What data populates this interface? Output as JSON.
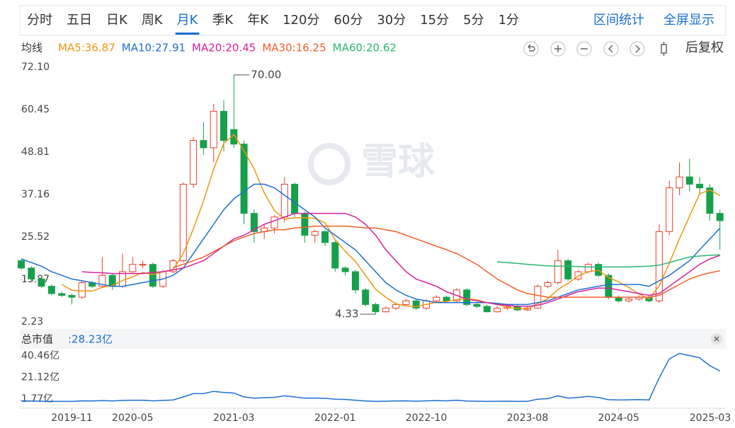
{
  "tabs": [
    "分时",
    "五日",
    "日K",
    "周K",
    "月K",
    "季K",
    "年K",
    "120分",
    "60分",
    "30分",
    "15分",
    "5分",
    "1分"
  ],
  "active_tab": "月K",
  "actions": [
    "区间统计",
    "全屏显示"
  ],
  "ma_label": "均线",
  "restore_label": "后复权",
  "watermark": "雪球",
  "cap_label": "总市值",
  "chart_data": [
    {
      "type": "candlestick",
      "up_color": "#e8412d",
      "down_color": "#16a04b",
      "ylim": [
        2.23,
        72.1
      ],
      "yticks": [
        {
          "value": 72.1,
          "label": "72.10"
        },
        60.45,
        48.81,
        37.16,
        25.52,
        13.87,
        2.23
      ],
      "annotations": [
        {
          "label": "70.00",
          "value": 70
        },
        {
          "label": "4.33",
          "value": 4.33
        }
      ],
      "open": [
        19,
        17,
        14,
        12,
        10,
        9.5,
        9,
        13,
        12,
        15,
        12,
        16,
        18,
        18,
        12,
        16,
        19,
        40,
        52,
        50,
        60,
        55,
        51,
        32,
        27,
        28,
        31,
        40,
        32,
        26,
        27,
        24,
        17,
        16,
        11,
        7,
        5,
        6,
        7,
        8,
        6,
        8,
        9,
        8,
        11,
        7,
        6.5,
        5,
        6,
        6.5,
        5.5,
        6,
        12,
        13,
        19,
        14,
        16,
        18,
        15,
        9,
        8,
        8.5,
        9,
        8,
        27,
        39,
        42,
        40,
        39,
        32
      ],
      "high": [
        19.5,
        17.5,
        14.5,
        12.5,
        10.5,
        10,
        13.5,
        13.5,
        20,
        15.5,
        21,
        20,
        19,
        18.5,
        16.5,
        19.5,
        40.5,
        53,
        57,
        62,
        63,
        70,
        52,
        33,
        29,
        31.5,
        42,
        40.5,
        32.5,
        27.5,
        27.5,
        24.5,
        17.5,
        16.5,
        11.5,
        7.5,
        6.5,
        7.5,
        8.5,
        8.5,
        8.5,
        9.5,
        9.5,
        11.5,
        11.5,
        7.5,
        7,
        6.5,
        6.8,
        7,
        6.5,
        12.5,
        13.5,
        22,
        19.5,
        16.5,
        18.5,
        18.5,
        15.5,
        9.5,
        9,
        9.5,
        9.5,
        29,
        41,
        46,
        47,
        42,
        40,
        33
      ],
      "low": [
        16.5,
        13.5,
        11.5,
        9.5,
        9,
        7,
        8.5,
        11.5,
        11.5,
        11,
        11.5,
        15.5,
        17,
        11.5,
        11.5,
        15.5,
        18.5,
        39,
        48,
        46,
        49,
        50,
        29,
        24,
        25,
        26.5,
        29.5,
        31,
        24,
        24,
        23,
        16,
        15,
        10,
        6.5,
        4.33,
        4.8,
        5.5,
        6.5,
        5.5,
        5.5,
        7.5,
        7.5,
        7.5,
        6.5,
        6,
        4.8,
        4.8,
        5.5,
        5.2,
        5.2,
        5.8,
        11.5,
        12.5,
        13.5,
        13.5,
        15.5,
        14.5,
        8.5,
        7.5,
        7.5,
        8,
        7.5,
        7.5,
        26,
        37,
        38,
        37,
        30,
        22
      ],
      "close": [
        17,
        14,
        12,
        10,
        9.5,
        9,
        13,
        12,
        15,
        12,
        16,
        18,
        18,
        12,
        16,
        19,
        40,
        52,
        50,
        60,
        52,
        51,
        32,
        27,
        28,
        31,
        40,
        32,
        26,
        27,
        24,
        17,
        16,
        11,
        7,
        5,
        6,
        7,
        8,
        6,
        8,
        9,
        8,
        11,
        7,
        6.5,
        5,
        6,
        6.5,
        5.5,
        6,
        12,
        13,
        19,
        14,
        16,
        18,
        15,
        9,
        8,
        8.5,
        9,
        8,
        27,
        39,
        42,
        40,
        39,
        32,
        30
      ],
      "series": [
        {
          "name": "MA5:36.87",
          "color": "#f0960f",
          "values": [
            null,
            null,
            null,
            null,
            12.5,
            10.9,
            10.7,
            10.7,
            11.7,
            12.2,
            13.6,
            14.6,
            15.8,
            15.2,
            16,
            16.6,
            21,
            27.8,
            35.4,
            44.2,
            51.2,
            53.6,
            49.2,
            44.2,
            37.6,
            32.8,
            30.4,
            30.8,
            30.8,
            30.6,
            29.4,
            24.8,
            21.6,
            18.8,
            15,
            11.2,
            9,
            7.2,
            6.6,
            6.4,
            7,
            7.6,
            7.8,
            8.4,
            8.6,
            8.3,
            7.5,
            7.1,
            6.2,
            5.9,
            5.8,
            7.2,
            8.6,
            11.1,
            12.8,
            14.8,
            16,
            16.4,
            14.4,
            13.2,
            11.7,
            9.9,
            8.5,
            12.1,
            18.3,
            25,
            31.2,
            37.4,
            38.4,
            36.87
          ]
        },
        {
          "name": "MA10:27.91",
          "color": "#1e6fd0",
          "values": [
            19.5,
            18.5,
            17.5,
            16,
            15,
            14,
            13.5,
            13,
            12.5,
            12,
            12,
            12.5,
            13,
            13.5,
            14,
            15,
            17,
            21,
            25,
            29,
            33,
            36,
            38,
            40,
            40,
            39,
            37,
            35,
            33,
            31,
            28,
            26,
            24,
            22,
            19,
            16,
            13,
            11,
            9.5,
            8.5,
            8,
            7.5,
            7.5,
            7.5,
            7.5,
            7.5,
            7.5,
            7.3,
            7,
            7,
            7,
            7.5,
            8,
            9,
            10,
            11,
            11.5,
            12,
            12.5,
            12.5,
            12.5,
            12.5,
            12,
            13.5,
            15,
            17,
            19,
            22,
            25,
            27.91
          ]
        },
        {
          "name": "MA20:20.45",
          "color": "#d6219c",
          "values": [
            null,
            null,
            null,
            null,
            null,
            null,
            16,
            15.8,
            15.7,
            15.5,
            15.5,
            15.5,
            15.5,
            15.8,
            16,
            16.5,
            17,
            18,
            19,
            21,
            23,
            25,
            26,
            27.5,
            29,
            30,
            31,
            32,
            32,
            32,
            32,
            32,
            32,
            31,
            29,
            26,
            22,
            19,
            16,
            14,
            13,
            12,
            10.5,
            9.5,
            8.5,
            8,
            7.5,
            7,
            6.8,
            6.5,
            6.5,
            6.8,
            7.5,
            8.5,
            9.5,
            10.5,
            11,
            11.5,
            11.5,
            11,
            10.5,
            10,
            9.5,
            10,
            12,
            14,
            16,
            18,
            19.5,
            20.45
          ]
        },
        {
          "name": "MA30:16.25",
          "color": "#f0602a",
          "values": [
            null,
            null,
            null,
            null,
            null,
            null,
            null,
            null,
            null,
            null,
            null,
            null,
            null,
            null,
            null,
            17.2,
            18,
            19,
            20,
            21.5,
            23,
            24.5,
            25.5,
            26.5,
            27,
            27.5,
            27.5,
            28,
            28.2,
            28.5,
            28.5,
            28.5,
            28.5,
            28.3,
            28,
            28,
            27.5,
            27,
            26,
            25,
            24,
            23,
            22,
            21,
            19.5,
            18,
            16,
            14,
            12.5,
            11,
            10,
            9.5,
            9,
            9,
            9,
            9,
            9,
            9,
            9,
            9,
            9,
            9,
            9,
            9.5,
            11,
            12.5,
            14,
            15,
            15.7,
            16.25
          ]
        },
        {
          "name": "MA60:20.62",
          "color": "#2bb673",
          "values": [
            null,
            null,
            null,
            null,
            null,
            null,
            null,
            null,
            null,
            null,
            null,
            null,
            null,
            null,
            null,
            null,
            null,
            null,
            null,
            null,
            null,
            null,
            null,
            null,
            null,
            null,
            null,
            null,
            null,
            null,
            null,
            null,
            null,
            null,
            null,
            null,
            null,
            null,
            null,
            null,
            null,
            null,
            null,
            null,
            null,
            null,
            null,
            18.7,
            18.5,
            18.3,
            18,
            17.8,
            17.6,
            17.5,
            17.5,
            17.4,
            17.3,
            17.3,
            17.3,
            17.3,
            17.3,
            17.4,
            17.5,
            17.8,
            18.5,
            19.3,
            20,
            20.3,
            20.5,
            20.62
          ]
        }
      ]
    },
    {
      "type": "line",
      "value_label": ":28.23亿",
      "color": "#1e6fd0",
      "ylim": [
        0,
        50
      ],
      "yticks": [
        {
          "value": 40.46,
          "label": "40.46亿"
        },
        {
          "value": 21.12,
          "label": "21.12亿"
        },
        {
          "value": 1.77,
          "label": "1.77亿"
        }
      ],
      "categories": [
        null,
        null,
        null,
        null,
        null,
        "2019-11",
        null,
        null,
        null,
        null,
        null,
        "2020-05",
        null,
        null,
        null,
        null,
        null,
        null,
        null,
        null,
        null,
        "2021-03",
        null,
        null,
        null,
        null,
        null,
        null,
        null,
        null,
        null,
        "2022-01",
        null,
        null,
        null,
        null,
        null,
        null,
        null,
        null,
        "2022-10",
        null,
        null,
        null,
        null,
        null,
        null,
        null,
        null,
        null,
        "2023-08",
        null,
        null,
        null,
        null,
        null,
        null,
        null,
        null,
        "2024-05",
        null,
        null,
        null,
        null,
        null,
        null,
        null,
        null,
        null,
        "2025-03"
      ],
      "values": [
        1.5,
        1.3,
        1.2,
        1.0,
        1.0,
        1.0,
        1.5,
        1.4,
        1.8,
        1.4,
        1.9,
        2.1,
        2.1,
        1.5,
        1.9,
        2.3,
        5,
        8,
        8,
        10,
        9,
        8.5,
        5,
        4,
        4.3,
        4.7,
        6,
        5,
        4,
        4,
        3.8,
        3,
        2.8,
        2,
        1.4,
        1,
        1.2,
        1.4,
        1.5,
        1.2,
        1.5,
        1.7,
        1.5,
        2,
        1.3,
        1.2,
        1,
        1.1,
        1.2,
        1,
        1.1,
        3,
        3.5,
        6,
        4,
        4.5,
        5.5,
        4.5,
        2.5,
        2.3,
        2.4,
        2.6,
        2.3,
        22,
        39,
        44,
        42,
        40,
        33,
        28.23
      ]
    }
  ]
}
